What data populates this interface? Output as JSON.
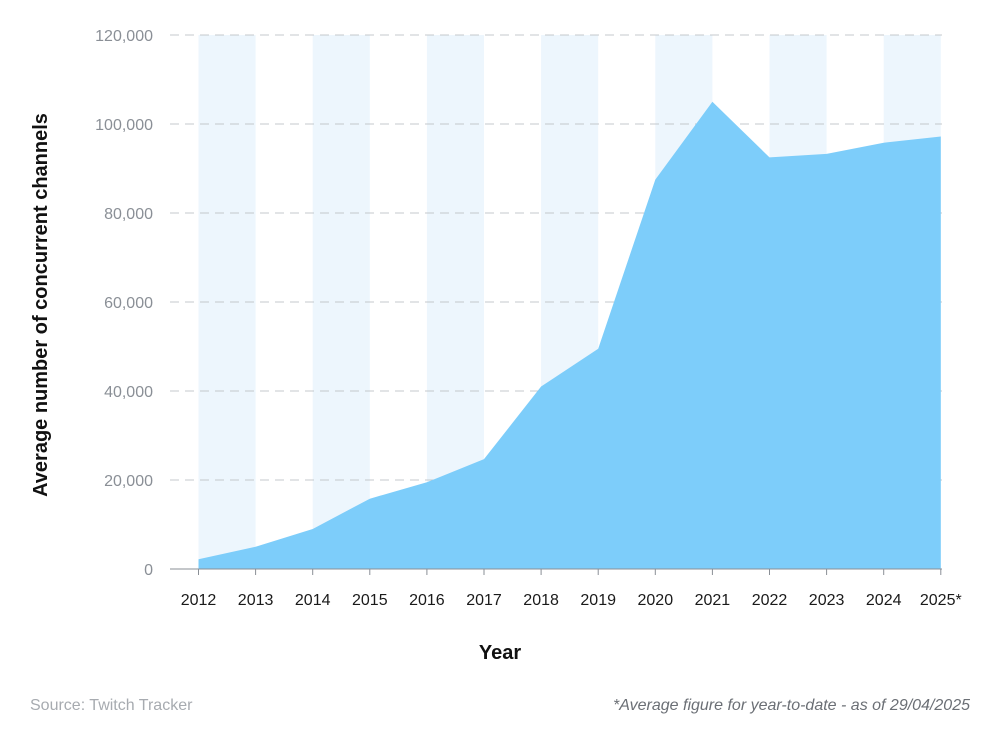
{
  "chart_data": {
    "type": "area",
    "x": [
      "2012",
      "2013",
      "2014",
      "2015",
      "2016",
      "2017",
      "2018",
      "2019",
      "2020",
      "2021",
      "2022",
      "2023",
      "2024",
      "2025*"
    ],
    "series": [
      {
        "values": [
          2200,
          5000,
          9000,
          15800,
          19500,
          24700,
          41000,
          49500,
          87500,
          105000,
          92500,
          93300,
          95800,
          97200
        ]
      }
    ],
    "xlabel": "Year",
    "ylabel": "Average number of concurrent channels",
    "ylim": [
      0,
      120000
    ],
    "yticks": [
      "0",
      "20,000",
      "40,000",
      "60,000",
      "80,000",
      "100,000",
      "120,000"
    ],
    "ytick_values": [
      0,
      20000,
      40000,
      60000,
      80000,
      100000,
      120000
    ],
    "grid": "horizontal dashed",
    "alternating_bands": true,
    "colors": {
      "area": "#7dcdfa",
      "band": "#edf6fd",
      "grid": "#c4c8cc",
      "axis": "#8a8f96"
    }
  },
  "footer": {
    "source": "Source: Twitch Tracker",
    "note": "*Average figure for year-to-date - as of 29/04/2025"
  }
}
